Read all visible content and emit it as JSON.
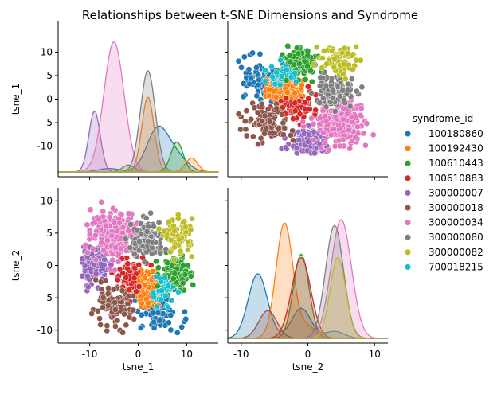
{
  "chart_data": {
    "type": "pairplot",
    "title": "Relationships between t-SNE Dimensions and Syndrome",
    "variables": [
      "tsne_1",
      "tsne_2"
    ],
    "hue": "syndrome_id",
    "axis_ranges": {
      "tsne_1": [
        -16.5,
        16.5
      ],
      "tsne_2": [
        -12,
        12
      ]
    },
    "tsne_1_ticks": [
      -10,
      0,
      10
    ],
    "y_ticks": [
      -10,
      -5,
      0,
      5,
      10
    ],
    "legend": {
      "title": "syndrome_id",
      "placement": "center-right"
    },
    "grid": false,
    "series": [
      {
        "name": "100180860",
        "color": "#1f77b4",
        "tsne_1": {
          "mean": 4.0,
          "sd": 2.5
        },
        "tsne_2": {
          "mean": -7.0,
          "sd": 1.6
        },
        "count": 90,
        "kde_tsne_1": [
          [
            -6,
            0.3
          ],
          [
            4,
            3.7
          ],
          [
            8,
            1.2
          ]
        ],
        "kde_tsne_2": [
          [
            -7.5,
            5.6
          ],
          [
            -1,
            2.6
          ],
          [
            4,
            0.6
          ]
        ]
      },
      {
        "name": "100192430",
        "color": "#ff7f0e",
        "tsne_1": {
          "mean": 2.0,
          "sd": 1.4
        },
        "tsne_2": {
          "mean": -3.5,
          "sd": 1.4
        },
        "count": 150,
        "kde_tsne_1": [
          [
            2,
            6.5
          ],
          [
            11,
            1.2
          ]
        ],
        "kde_tsne_2": [
          [
            -3.5,
            10.0
          ],
          [
            0,
            1.0
          ]
        ]
      },
      {
        "name": "100610443",
        "color": "#2ca02c",
        "tsne_1": {
          "mean": 7.5,
          "sd": 1.4
        },
        "tsne_2": {
          "mean": -1.5,
          "sd": 1.3
        },
        "count": 150,
        "kde_tsne_1": [
          [
            8,
            2.6
          ],
          [
            -2,
            0.6
          ]
        ],
        "kde_tsne_2": [
          [
            -1,
            7.3
          ]
        ]
      },
      {
        "name": "100610883",
        "color": "#d62728",
        "tsne_1": {
          "mean": -2.0,
          "sd": 1.6
        },
        "tsne_2": {
          "mean": -1.5,
          "sd": 1.6
        },
        "count": 60,
        "kde_tsne_1": [
          [
            -1,
            0.0
          ],
          [
            2,
            -1.0
          ]
        ],
        "kde_tsne_2": [
          [
            -1,
            7.0
          ]
        ]
      },
      {
        "name": "300000007",
        "color": "#9467bd",
        "tsne_1": {
          "mean": -9.0,
          "sd": 1.3
        },
        "tsne_2": {
          "mean": 0.0,
          "sd": 1.3
        },
        "count": 160,
        "kde_tsne_1": [
          [
            -9,
            5.3
          ]
        ],
        "kde_tsne_2": [
          [
            -9,
            -3.8
          ]
        ]
      },
      {
        "name": "300000018",
        "color": "#8c564b",
        "tsne_1": {
          "mean": -5.5,
          "sd": 2.2
        },
        "tsne_2": {
          "mean": -6.5,
          "sd": 1.5
        },
        "count": 90,
        "kde_tsne_1": [
          [
            -5,
            -1.0
          ]
        ],
        "kde_tsne_2": [
          [
            -6,
            2.4
          ]
        ]
      },
      {
        "name": "300000034",
        "color": "#e377c2",
        "tsne_1": {
          "mean": -5.0,
          "sd": 2.3
        },
        "tsne_2": {
          "mean": 5.0,
          "sd": 1.7
        },
        "count": 230,
        "kde_tsne_1": [
          [
            -5,
            11.3
          ],
          [
            6,
            -1.0
          ]
        ],
        "kde_tsne_2": [
          [
            5,
            10.3
          ]
        ]
      },
      {
        "name": "300000080",
        "color": "#7f7f7f",
        "tsne_1": {
          "mean": 2.0,
          "sd": 1.7
        },
        "tsne_2": {
          "mean": 4.0,
          "sd": 1.5
        },
        "count": 130,
        "kde_tsne_1": [
          [
            2,
            8.8
          ]
        ],
        "kde_tsne_2": [
          [
            4,
            9.8
          ]
        ]
      },
      {
        "name": "300000082",
        "color": "#bcbd22",
        "tsne_1": {
          "mean": 8.5,
          "sd": 1.4
        },
        "tsne_2": {
          "mean": 4.5,
          "sd": 1.3
        },
        "count": 70,
        "kde_tsne_1": [
          [
            8.5,
            -1.0
          ]
        ],
        "kde_tsne_2": [
          [
            4.5,
            7.0
          ]
        ]
      },
      {
        "name": "700018215",
        "color": "#17becf",
        "tsne_1": {
          "mean": 5.0,
          "sd": 1.2
        },
        "tsne_2": {
          "mean": -4.0,
          "sd": 1.2
        },
        "count": 40,
        "kde_tsne_1": [],
        "kde_tsne_2": []
      }
    ]
  }
}
